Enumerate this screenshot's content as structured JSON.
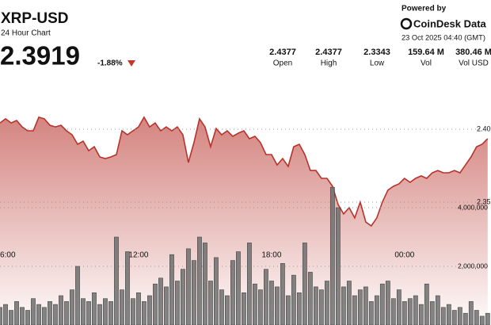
{
  "header": {
    "symbol": "XRP-USD",
    "subtitle": "24 Hour Chart",
    "price": "2.3919",
    "change": "-1.88%",
    "powered_by": "Powered by",
    "brand": "CoinDesk Data",
    "timestamp": "23 Oct 2025 04:40 (GMT)",
    "stats": [
      {
        "value": "2.4377",
        "label": "Open"
      },
      {
        "value": "2.4377",
        "label": "High"
      },
      {
        "value": "2.3343",
        "label": "Low"
      },
      {
        "value": "159.64 M",
        "label": "Vol"
      },
      {
        "value": "380.46 M",
        "label": "Vol USD"
      }
    ]
  },
  "chart_data": [
    {
      "type": "area",
      "color": "#b8322a",
      "xlim": [
        0,
        88.6
      ],
      "xticks": [
        {
          "value": 1,
          "label": "06:00"
        },
        {
          "value": 25,
          "label": "12:00"
        },
        {
          "value": 49,
          "label": "18:00"
        },
        {
          "value": 73,
          "label": "00:00"
        }
      ],
      "ylim": [
        2.2658,
        2.4125
      ],
      "yticks": [
        {
          "value": 2.4,
          "label": "2.40"
        },
        2.35
      ],
      "values": [
        2.4043,
        2.4071,
        2.4043,
        2.406,
        2.4016,
        2.3989,
        2.3989,
        2.4082,
        2.4071,
        2.4027,
        2.4016,
        2.4027,
        2.3989,
        2.3962,
        2.3897,
        2.3918,
        2.3853,
        2.388,
        2.381,
        2.3799,
        2.381,
        2.3826,
        2.3989,
        2.3962,
        2.3989,
        2.4016,
        2.4082,
        2.4016,
        2.4043,
        2.3989,
        2.4016,
        2.3989,
        2.4016,
        2.3962,
        2.3772,
        2.3908,
        2.4071,
        2.4016,
        2.388,
        2.4005,
        2.3962,
        2.3989,
        2.3951,
        2.3973,
        2.3989,
        2.3935,
        2.3951,
        2.3908,
        2.3826,
        2.3826,
        2.3755,
        2.3799,
        2.3745,
        2.388,
        2.3897,
        2.3826,
        2.3717,
        2.3717,
        2.3663,
        2.3663,
        2.3609,
        2.3484,
        2.3419,
        2.3462,
        2.3392,
        2.35,
        2.3364,
        2.3337,
        2.3392,
        2.35,
        2.3582,
        2.3609,
        2.3625,
        2.3663,
        2.3636,
        2.3663,
        2.368,
        2.3663,
        2.3701,
        2.3717,
        2.3701,
        2.3701,
        2.3717,
        2.3701,
        2.3755,
        2.381,
        2.388,
        2.3897,
        2.3935
      ]
    },
    {
      "type": "bar",
      "color": "#6e6e6e",
      "ylim": [
        0,
        7300000
      ],
      "yticks": [
        {
          "value": 4000000,
          "label": "4,000,000"
        },
        {
          "value": 2000000,
          "label": "2,000,000"
        }
      ],
      "values": [
        600000,
        700000,
        500000,
        800000,
        600000,
        500000,
        900000,
        700000,
        600000,
        800000,
        700000,
        1000000,
        800000,
        1200000,
        2000000,
        900000,
        800000,
        1100000,
        700000,
        900000,
        800000,
        3000000,
        1200000,
        2500000,
        900000,
        1100000,
        800000,
        1000000,
        1400000,
        1600000,
        1300000,
        2400000,
        1500000,
        1900000,
        2600000,
        2200000,
        3000000,
        2800000,
        1500000,
        2300000,
        1200000,
        1000000,
        2200000,
        2500000,
        1100000,
        2800000,
        1400000,
        1200000,
        1900000,
        1500000,
        1300000,
        2100000,
        1000000,
        1700000,
        1100000,
        2800000,
        1800000,
        1300000,
        1200000,
        1500000,
        4700000,
        4000000,
        1300000,
        1500000,
        1000000,
        1200000,
        1300000,
        800000,
        1000000,
        1400000,
        1500000,
        900000,
        1200000,
        800000,
        900000,
        1000000,
        700000,
        1400000,
        800000,
        1000000,
        600000,
        700000,
        500000,
        600000,
        400000,
        800000,
        500000,
        300000,
        400000
      ]
    }
  ]
}
